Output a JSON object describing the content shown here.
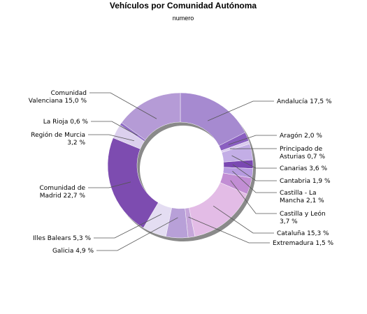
{
  "chart_data": {
    "type": "pie",
    "variant": "donut",
    "title": "Vehículos por Comunidad Autónoma",
    "subtitle": "numero",
    "unit": "%",
    "slices": [
      {
        "name": "Andalucía",
        "value": 17.5,
        "label": "Andalucía 17,5 %",
        "color": "#a68ad0"
      },
      {
        "name": "Aragón",
        "value": 2.0,
        "label": "Aragón 2,0 %",
        "color": "#8a5fc0"
      },
      {
        "name": "Principado de Asturias",
        "value": 0.7,
        "label": "Principado de Asturias 0,7 %",
        "color": "#d9c9ee"
      },
      {
        "name": "Canarias",
        "value": 3.6,
        "label": "Canarias 3,6 %",
        "color": "#c3aee6"
      },
      {
        "name": "Cantabria",
        "value": 1.9,
        "label": "Cantabria 1,9 %",
        "color": "#7a48b2"
      },
      {
        "name": "Castilla - La Mancha",
        "value": 2.1,
        "label": "Castilla - La Mancha 2,1 %",
        "color": "#b79be0"
      },
      {
        "name": "Castilla y León",
        "value": 3.7,
        "label": "Castilla y León 3,7 %",
        "color": "#c28ed4"
      },
      {
        "name": "Cataluña",
        "value": 15.3,
        "label": "Cataluña 15,3 %",
        "color": "#e3bce6"
      },
      {
        "name": "Extremadura",
        "value": 1.5,
        "label": "Extremadura 1,5 %",
        "color": "#c6a6da"
      },
      {
        "name": "Galicia",
        "value": 4.9,
        "label": "Galicia 4,9 %",
        "color": "#b8a0d8"
      },
      {
        "name": "Illes Balears",
        "value": 5.3,
        "label": "Illes Balears 5,3 %",
        "color": "#e4ddf2"
      },
      {
        "name": "Comunidad de Madrid",
        "value": 22.7,
        "label": "Comunidad de Madrid 22,7 %",
        "color": "#7d4cb0"
      },
      {
        "name": "Región de Murcia",
        "value": 3.2,
        "label": "Región de Murcia 3,2 %",
        "color": "#dcd0ee"
      },
      {
        "name": "La Rioja",
        "value": 0.6,
        "label": "La Rioja 0,6 %",
        "color": "#8f6cc4"
      },
      {
        "name": "Comunidad Valenciana",
        "value": 15.0,
        "label": "Comunidad Valenciana 15,0 %",
        "color": "#b59bd6"
      }
    ],
    "legend": "none",
    "labels": "outside with leader lines"
  }
}
